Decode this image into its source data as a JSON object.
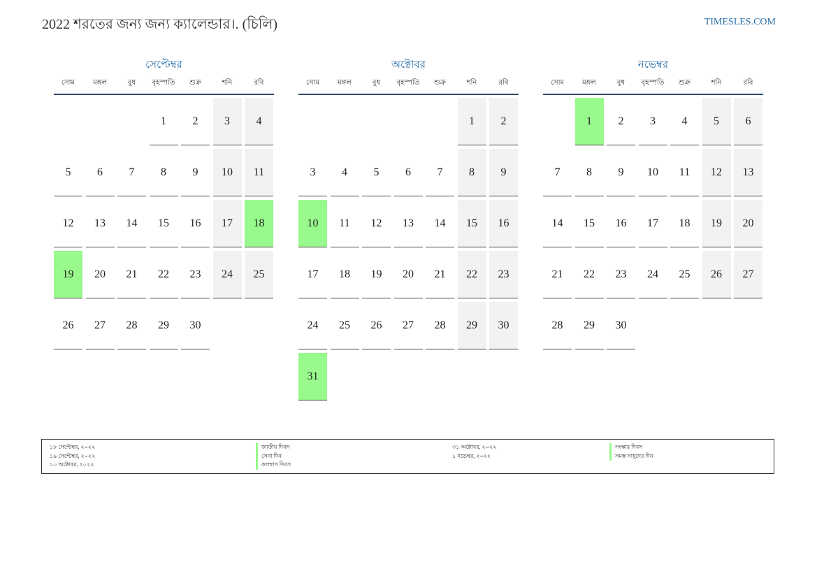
{
  "header": {
    "title": "2022 শরতের জন্য জন্য ক্যালেন্ডার।. (চিলি)",
    "brand": "TIMESLES.COM"
  },
  "weekdays": [
    "সোম",
    "মঙ্গল",
    "বুধ",
    "বৃহস্পতি",
    "শুক্র",
    "শনি",
    "রবি"
  ],
  "months": [
    {
      "name": "সেপ্টেম্বর",
      "start_offset": 3,
      "days": 30,
      "holidays": [
        18,
        19
      ]
    },
    {
      "name": "অক্টোবর",
      "start_offset": 5,
      "days": 31,
      "holidays": [
        10,
        31
      ]
    },
    {
      "name": "নভেম্বর",
      "start_offset": 1,
      "days": 30,
      "holidays": [
        1
      ]
    }
  ],
  "colors": {
    "holiday": "#98f98c",
    "weekend": "#f2f2f2",
    "accent": "#2a6fa8"
  },
  "legend": {
    "left_dates": [
      "১৮ সেপ্টেম্বর, ২০২২",
      "১৯ সেপ্টেম্বর, ২০২২",
      "১০ অক্টোবর, ২০২২"
    ],
    "left_names": [
      "জাতীয় দিবস",
      "সেনা দিন",
      "কলম্বাস দিবস"
    ],
    "right_dates": [
      "৩১ অক্টোবর, ২০২২",
      "১ নভেম্বর, ২০২২"
    ],
    "right_names": [
      "সংস্কার দিবস",
      "সমস্ত সাধুদের দিন"
    ]
  }
}
